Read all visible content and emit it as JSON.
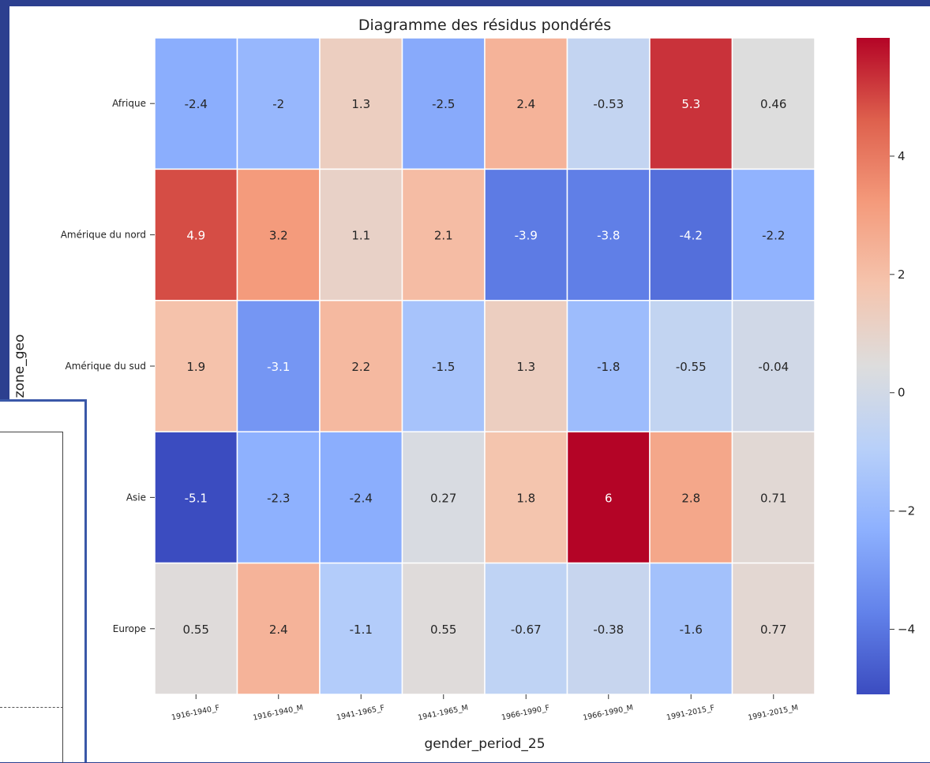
{
  "chart_data": {
    "type": "heatmap",
    "title": "Diagramme des résidus pondérés",
    "xlabel": "gender_period_25",
    "ylabel": "zone_geo",
    "x_categories": [
      "1916-1940_F",
      "1916-1940_M",
      "1941-1965_F",
      "1941-1965_M",
      "1966-1990_F",
      "1966-1990_M",
      "1991-2015_F",
      "1991-2015_M"
    ],
    "y_categories": [
      "Afrique",
      "Amérique du nord",
      "Amérique du sud",
      "Asie",
      "Europe"
    ],
    "values": [
      [
        -2.4,
        -2,
        1.3,
        -2.5,
        2.4,
        -0.53,
        5.3,
        0.46
      ],
      [
        4.9,
        3.2,
        1.1,
        2.1,
        -3.9,
        -3.8,
        -4.2,
        -2.2
      ],
      [
        1.9,
        -3.1,
        2.2,
        -1.5,
        1.3,
        -1.8,
        -0.55,
        -0.04
      ],
      [
        -5.1,
        -2.3,
        -2.4,
        0.27,
        1.8,
        6,
        2.8,
        0.71
      ],
      [
        0.55,
        2.4,
        -1.1,
        0.55,
        -0.67,
        -0.38,
        -1.6,
        0.77
      ]
    ],
    "colormap": "coolwarm",
    "vmin": -5.1,
    "vmax": 6,
    "colorbar_ticks": [
      4,
      2,
      0,
      -2,
      -4
    ],
    "colorbar_tick_labels": [
      "4",
      "2",
      "0",
      "−2",
      "−4"
    ],
    "annotations": true,
    "grid_color": "#ffffff"
  }
}
